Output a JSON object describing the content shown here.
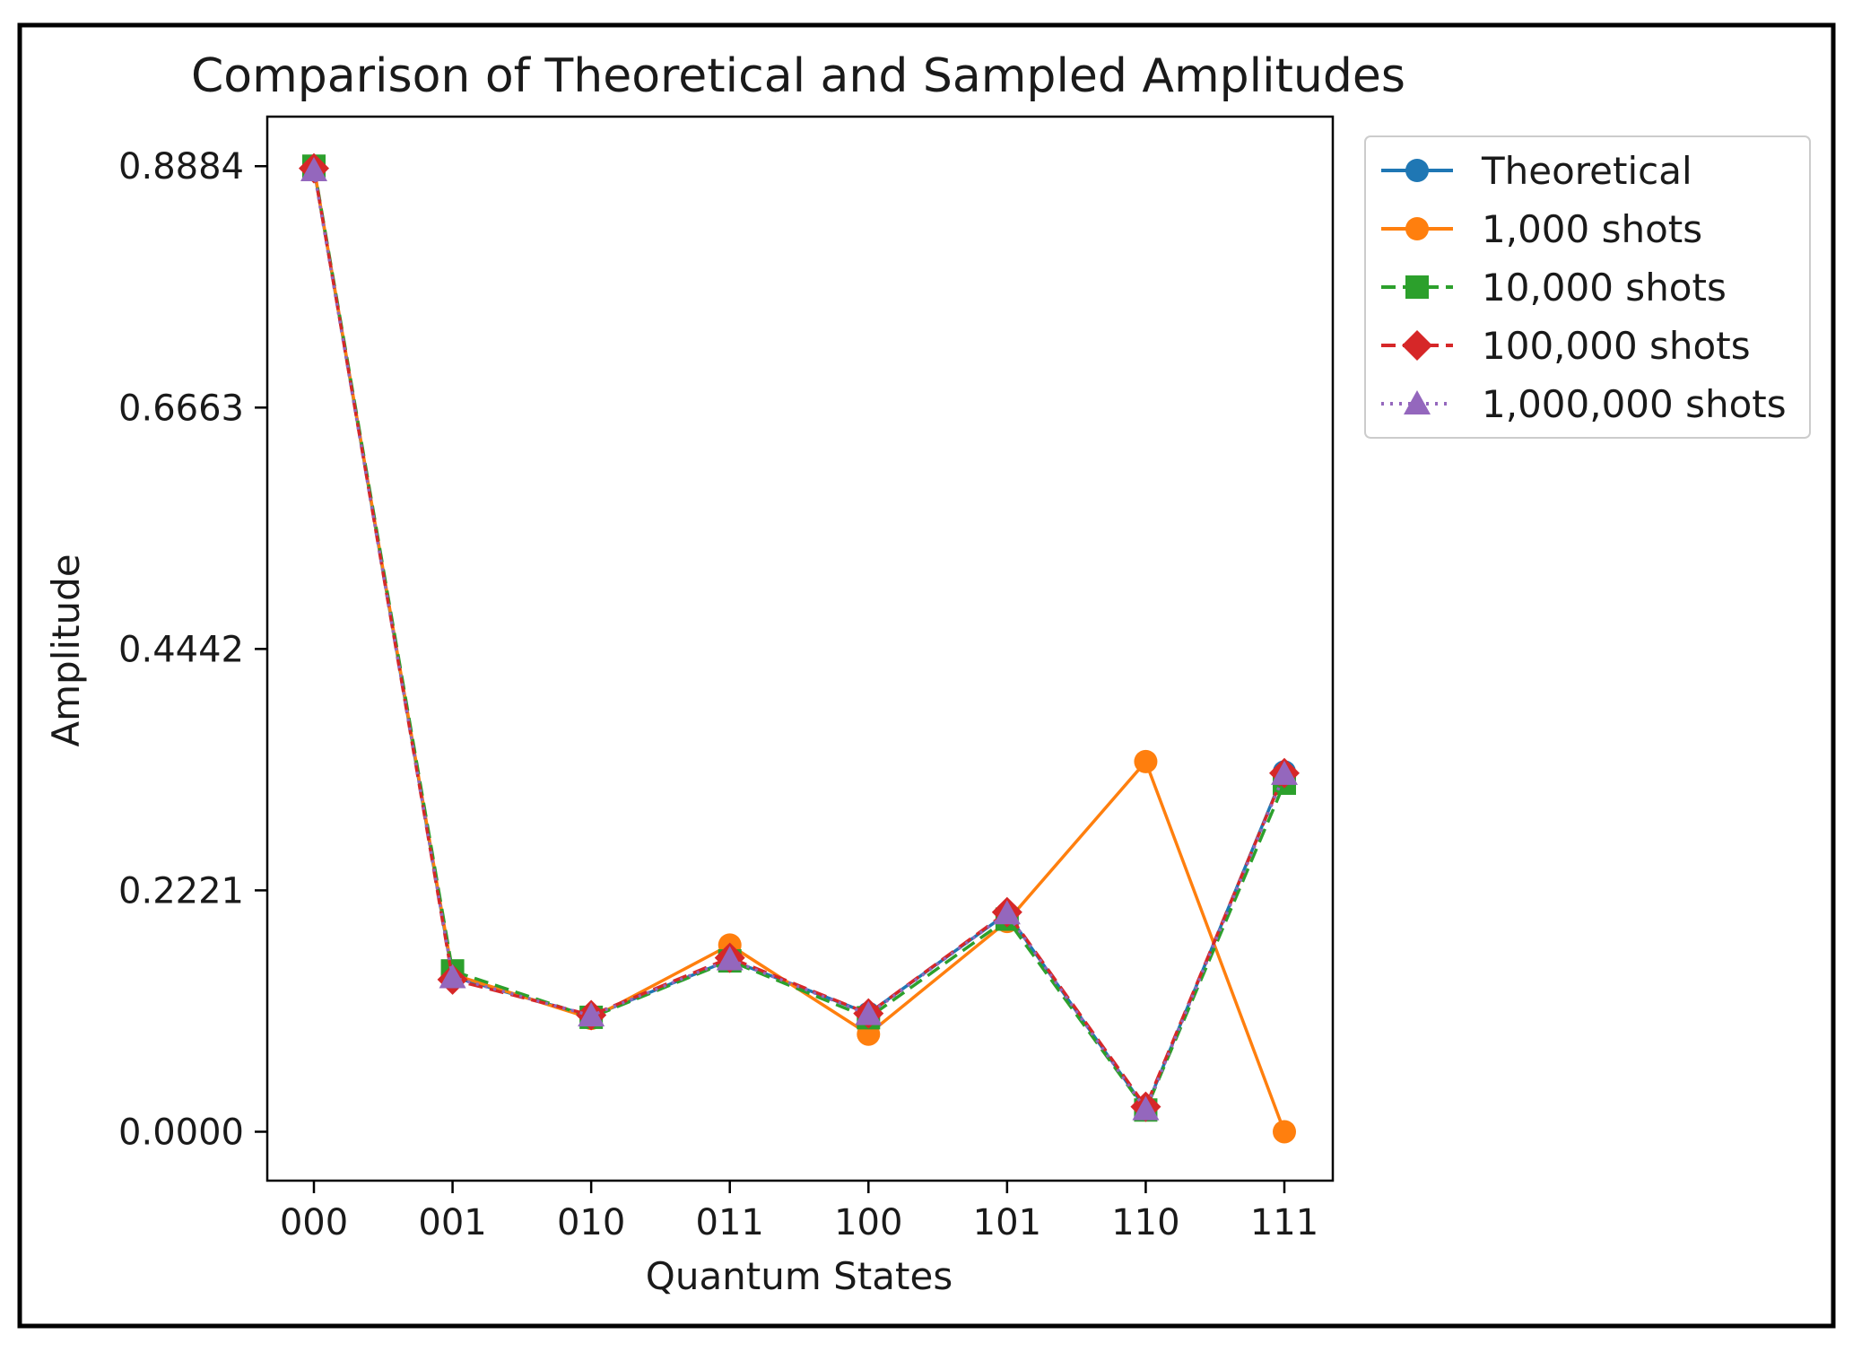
{
  "chart_data": {
    "type": "line",
    "title": "Comparison of Theoretical and Sampled Amplitudes",
    "xlabel": "Quantum States",
    "ylabel": "Amplitude",
    "categories": [
      "000",
      "001",
      "010",
      "011",
      "100",
      "101",
      "110",
      "111"
    ],
    "yticks": [
      "0.0000",
      "0.2221",
      "0.4442",
      "0.6663",
      "0.8884"
    ],
    "ylim": [
      -0.045,
      0.934
    ],
    "grid": false,
    "legend_position": "outside-top-right",
    "series": [
      {
        "name": "Theoretical",
        "color": "#1f77b4",
        "marker": "circle",
        "linestyle": "solid",
        "values": [
          0.8864,
          0.1425,
          0.1063,
          0.1581,
          0.1088,
          0.2008,
          0.021,
          0.3311
        ]
      },
      {
        "name": "1,000 shots",
        "color": "#ff7f0e",
        "marker": "circle",
        "linestyle": "solid",
        "values": [
          0.8873,
          0.1449,
          0.1043,
          0.1718,
          0.0898,
          0.1935,
          0.3406,
          0.0
        ]
      },
      {
        "name": "10,000 shots",
        "color": "#2ca02c",
        "marker": "square",
        "linestyle": "dashed",
        "values": [
          0.8884,
          0.148,
          0.1053,
          0.1572,
          0.1049,
          0.1956,
          0.02,
          0.3207
        ]
      },
      {
        "name": "100,000 shots",
        "color": "#d62728",
        "marker": "diamond",
        "linestyle": "dashed",
        "values": [
          0.8864,
          0.14,
          0.1073,
          0.16,
          0.1088,
          0.202,
          0.023,
          0.33
        ]
      },
      {
        "name": "1,000,000 shots",
        "color": "#9467bd",
        "marker": "triangle",
        "linestyle": "dotted",
        "values": [
          0.8845,
          0.142,
          0.1068,
          0.1585,
          0.108,
          0.2008,
          0.0205,
          0.329
        ]
      }
    ]
  }
}
